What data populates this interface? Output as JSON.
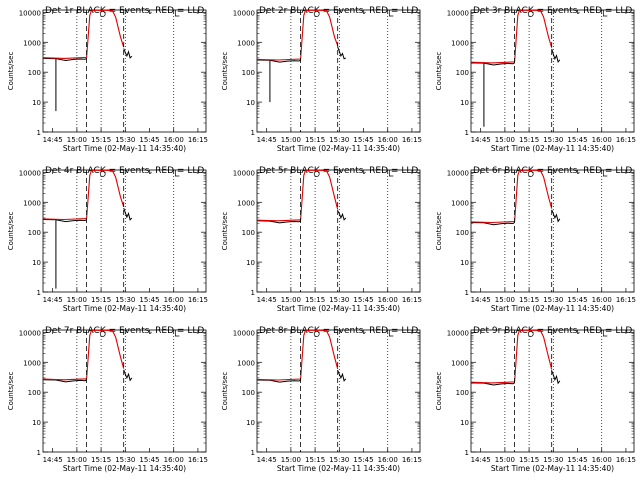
{
  "chart_data": [
    {
      "type": "line",
      "title": "Det 1r BLACK = Events, RED = LLD",
      "base": 290,
      "drop": {
        "x": 15,
        "y": 5
      },
      "spike": [
        20,
        620,
        450,
        350,
        480,
        300,
        340
      ]
    },
    {
      "type": "line",
      "title": "Det 2r BLACK = Events, RED = LLD",
      "base": 255,
      "drop": {
        "x": 15,
        "y": 10
      },
      "spike": [
        20,
        700,
        500,
        350,
        420,
        280,
        300
      ]
    },
    {
      "type": "line",
      "title": "Det 3r BLACK = Events, RED = LLD",
      "base": 205,
      "drop": {
        "x": 15,
        "y": 1.5
      },
      "spike": [
        20,
        600,
        400,
        280,
        360,
        220,
        260
      ]
    },
    {
      "type": "line",
      "title": "Det 4r BLACK = Events, RED = LLD",
      "base": 265,
      "drop": {
        "x": 15,
        "y": 1.3
      },
      "spike": [
        20,
        640,
        450,
        320,
        420,
        260,
        300
      ]
    },
    {
      "type": "line",
      "title": "Det 5r BLACK = Events, RED = LLD",
      "base": 240,
      "drop": null,
      "spike": [
        20,
        520,
        420,
        300,
        400,
        260,
        300
      ]
    },
    {
      "type": "line",
      "title": "Det 6r BLACK = Events, RED = LLD",
      "base": 210,
      "drop": null,
      "spike": [
        20,
        560,
        420,
        300,
        380,
        230,
        280
      ]
    },
    {
      "type": "line",
      "title": "Det 7r BLACK = Events, RED = LLD",
      "base": 260,
      "drop": null,
      "spike": [
        20,
        560,
        400,
        300,
        400,
        250,
        300
      ]
    },
    {
      "type": "line",
      "title": "Det 8r BLACK = Events, RED = LLD",
      "base": 255,
      "drop": null,
      "spike": [
        20,
        540,
        400,
        300,
        400,
        240,
        280
      ]
    },
    {
      "type": "line",
      "title": "Det 9r BLACK = Events, RED = LLD",
      "base": 205,
      "drop": null,
      "spike": [
        20,
        520,
        380,
        260,
        340,
        200,
        240
      ]
    }
  ],
  "shared": {
    "xlabel": "Start Time (02-May-11 14:35:40)",
    "ylabel": "Counts/sec",
    "x_tick_labels": [
      "14:45",
      "15:00",
      "15:15",
      "15:30",
      "15:45",
      "16:00",
      "16:15"
    ],
    "y_tick_labels": [
      "1",
      "10",
      "100",
      "1000",
      "10000"
    ],
    "ylim": [
      1,
      12000
    ],
    "dashed_lines_x_labels": [
      "15:06",
      "15:29"
    ],
    "dotted_lines_x_labels": [
      "15:00",
      "15:15",
      "15:30",
      "16:00"
    ],
    "saa_marker_x_label": "15:16",
    "end_marker_x_label": "16:01",
    "colors": {
      "events": "#000000",
      "lld": "#dd0000"
    }
  }
}
